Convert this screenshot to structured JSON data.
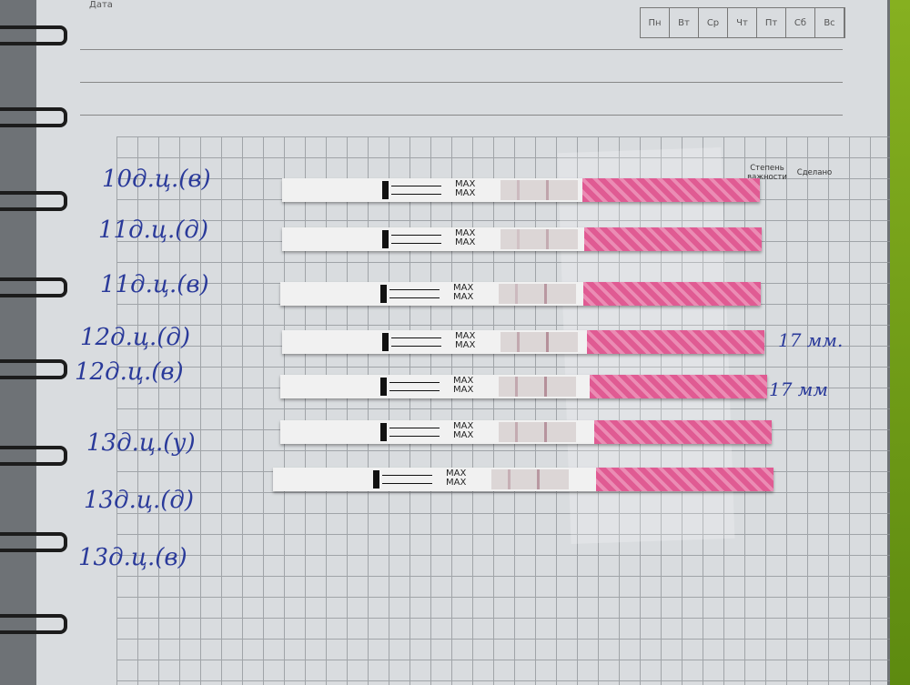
{
  "header": {
    "date_label": "Дата",
    "weekdays": [
      "Пн",
      "Вт",
      "Ср",
      "Чт",
      "Пт",
      "Сб",
      "Вс"
    ]
  },
  "table": {
    "col_importance": "Степень важности",
    "col_done": "Сделано"
  },
  "strip_text": "MAX",
  "entries": [
    {
      "label": "10д.ц.(в)"
    },
    {
      "label": "11д.ц.(д)"
    },
    {
      "label": "11д.ц.(в)"
    },
    {
      "label": "12д.ц.(д)",
      "note": "17 мм."
    },
    {
      "label": "12д.ц.(в)",
      "note": "17 мм"
    },
    {
      "label": "13д.ц.(у)"
    },
    {
      "label": "13д.ц.(д)"
    },
    {
      "label": "13д.ц.(в)"
    }
  ],
  "colors": {
    "ink": "#2a3a9a",
    "strip_pink": "#e05b93",
    "paper": "#d9dcdf"
  }
}
